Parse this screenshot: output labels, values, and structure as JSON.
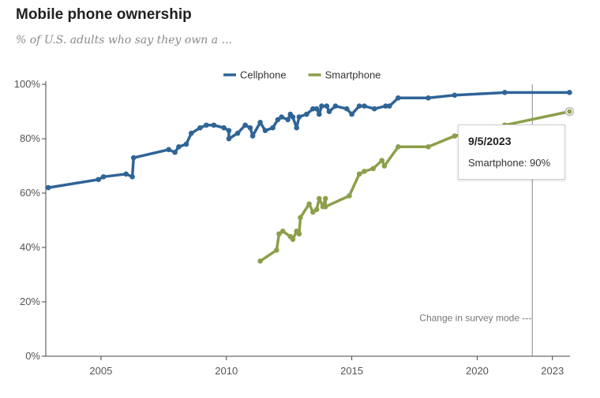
{
  "header": {
    "title": "Mobile phone ownership",
    "subtitle": "% of U.S. adults who say they own a ..."
  },
  "tooltip": {
    "date": "9/5/2023",
    "label": "Smartphone: 90%"
  },
  "annotation": "Change in survey mode ---",
  "chart_data": {
    "type": "line",
    "title": "Mobile phone ownership",
    "subtitle": "% of U.S. adults who say they own a ...",
    "legend_position": "top-center",
    "grid": false,
    "xlim": [
      2002.8,
      2023.7
    ],
    "ylim": [
      0,
      100
    ],
    "x_ticks": [
      2005,
      2010,
      2015,
      2020,
      2023
    ],
    "x_tick_labels": [
      "2005",
      "2010",
      "2015",
      "2020",
      "2023"
    ],
    "y_ticks": [
      0,
      20,
      40,
      60,
      80,
      100
    ],
    "y_tick_labels": [
      "0%",
      "20%",
      "40%",
      "60%",
      "80%",
      "100%"
    ],
    "survey_mode_change_x": 2022.2,
    "colors": {
      "Cellphone": "#2f6497",
      "Smartphone": "#8c9f4a"
    },
    "series": [
      {
        "name": "Cellphone",
        "points": [
          [
            2002.9,
            62
          ],
          [
            2004.9,
            65
          ],
          [
            2005.1,
            66
          ],
          [
            2006.0,
            67
          ],
          [
            2006.25,
            66
          ],
          [
            2006.3,
            73
          ],
          [
            2007.7,
            76
          ],
          [
            2007.95,
            75
          ],
          [
            2008.1,
            77
          ],
          [
            2008.4,
            78
          ],
          [
            2008.6,
            82
          ],
          [
            2008.95,
            84
          ],
          [
            2009.2,
            85
          ],
          [
            2009.5,
            85
          ],
          [
            2009.9,
            84
          ],
          [
            2010.1,
            83
          ],
          [
            2010.1,
            80
          ],
          [
            2010.45,
            82
          ],
          [
            2010.75,
            85
          ],
          [
            2010.95,
            84
          ],
          [
            2011.05,
            81
          ],
          [
            2011.35,
            86
          ],
          [
            2011.55,
            83
          ],
          [
            2011.85,
            84
          ],
          [
            2012.05,
            87
          ],
          [
            2012.2,
            88
          ],
          [
            2012.45,
            87
          ],
          [
            2012.55,
            89
          ],
          [
            2012.65,
            88
          ],
          [
            2012.8,
            84
          ],
          [
            2012.9,
            88
          ],
          [
            2013.2,
            89
          ],
          [
            2013.45,
            91
          ],
          [
            2013.6,
            91
          ],
          [
            2013.7,
            89
          ],
          [
            2013.8,
            92
          ],
          [
            2014.0,
            92
          ],
          [
            2014.1,
            90
          ],
          [
            2014.35,
            92
          ],
          [
            2014.8,
            91
          ],
          [
            2015.0,
            89
          ],
          [
            2015.3,
            92
          ],
          [
            2015.5,
            92
          ],
          [
            2015.9,
            91
          ],
          [
            2016.35,
            92
          ],
          [
            2016.5,
            92
          ],
          [
            2016.85,
            95
          ],
          [
            2018.05,
            95
          ],
          [
            2019.1,
            96
          ],
          [
            2021.1,
            97
          ],
          [
            2023.68,
            97
          ]
        ]
      },
      {
        "name": "Smartphone",
        "points": [
          [
            2011.35,
            35
          ],
          [
            2012.0,
            39
          ],
          [
            2012.1,
            45
          ],
          [
            2012.25,
            46
          ],
          [
            2012.55,
            44
          ],
          [
            2012.65,
            43
          ],
          [
            2012.8,
            46
          ],
          [
            2012.9,
            45
          ],
          [
            2012.95,
            51
          ],
          [
            2013.3,
            56
          ],
          [
            2013.45,
            53
          ],
          [
            2013.6,
            54
          ],
          [
            2013.7,
            58
          ],
          [
            2013.85,
            55
          ],
          [
            2013.95,
            58
          ],
          [
            2013.95,
            55
          ],
          [
            2014.9,
            59
          ],
          [
            2015.3,
            67
          ],
          [
            2015.5,
            68
          ],
          [
            2015.85,
            69
          ],
          [
            2016.2,
            72
          ],
          [
            2016.3,
            70
          ],
          [
            2016.85,
            77
          ],
          [
            2018.05,
            77
          ],
          [
            2019.1,
            81
          ],
          [
            2021.1,
            85
          ],
          [
            2023.68,
            90
          ]
        ]
      }
    ]
  }
}
